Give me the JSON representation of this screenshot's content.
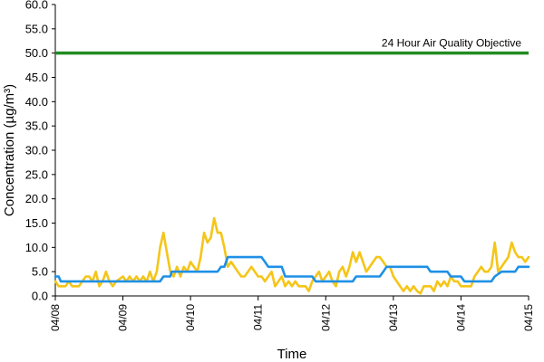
{
  "chart_data": {
    "type": "line",
    "title": "",
    "xlabel": "Time",
    "ylabel": "Concentration (µg/m³)",
    "ylim": [
      0,
      60
    ],
    "y_ticks": [
      "0.0",
      "5.0",
      "10.0",
      "15.0",
      "20.0",
      "25.0",
      "30.0",
      "35.0",
      "40.0",
      "45.0",
      "50.0",
      "55.0",
      "60.0"
    ],
    "x_tick_labels": [
      "04/08",
      "04/09",
      "04/10",
      "04/11",
      "04/12",
      "04/13",
      "04/14",
      "04/15"
    ],
    "xlim_days": [
      0,
      7
    ],
    "grid": false,
    "legend": "none",
    "reference_line": {
      "label": "24 Hour Air Quality Objective",
      "value": 50,
      "color": "#228B22"
    },
    "series": [
      {
        "color": "#F5C518",
        "points": [
          [
            0.0,
            3
          ],
          [
            0.05,
            2
          ],
          [
            0.1,
            2
          ],
          [
            0.15,
            2
          ],
          [
            0.2,
            3
          ],
          [
            0.25,
            2
          ],
          [
            0.3,
            2
          ],
          [
            0.35,
            2
          ],
          [
            0.4,
            3
          ],
          [
            0.45,
            4
          ],
          [
            0.5,
            4
          ],
          [
            0.55,
            3
          ],
          [
            0.6,
            5
          ],
          [
            0.65,
            2
          ],
          [
            0.7,
            3
          ],
          [
            0.75,
            5
          ],
          [
            0.8,
            3
          ],
          [
            0.85,
            2
          ],
          [
            0.9,
            3
          ],
          [
            1.0,
            4
          ],
          [
            1.05,
            3
          ],
          [
            1.1,
            4
          ],
          [
            1.15,
            3
          ],
          [
            1.2,
            4
          ],
          [
            1.25,
            3
          ],
          [
            1.3,
            4
          ],
          [
            1.35,
            3
          ],
          [
            1.4,
            5
          ],
          [
            1.45,
            3
          ],
          [
            1.5,
            5
          ],
          [
            1.55,
            10
          ],
          [
            1.6,
            13
          ],
          [
            1.65,
            9
          ],
          [
            1.7,
            5
          ],
          [
            1.75,
            4
          ],
          [
            1.8,
            6
          ],
          [
            1.85,
            4
          ],
          [
            1.9,
            6
          ],
          [
            1.95,
            5
          ],
          [
            2.0,
            7
          ],
          [
            2.05,
            6
          ],
          [
            2.1,
            5
          ],
          [
            2.15,
            8
          ],
          [
            2.2,
            13
          ],
          [
            2.25,
            11
          ],
          [
            2.3,
            12
          ],
          [
            2.35,
            16
          ],
          [
            2.4,
            13
          ],
          [
            2.45,
            13
          ],
          [
            2.5,
            10
          ],
          [
            2.55,
            6
          ],
          [
            2.6,
            7
          ],
          [
            2.65,
            6
          ],
          [
            2.7,
            5
          ],
          [
            2.75,
            4
          ],
          [
            2.8,
            4
          ],
          [
            2.85,
            5
          ],
          [
            2.9,
            6
          ],
          [
            2.95,
            5
          ],
          [
            3.0,
            4
          ],
          [
            3.05,
            4
          ],
          [
            3.1,
            3
          ],
          [
            3.15,
            4
          ],
          [
            3.2,
            5
          ],
          [
            3.25,
            2
          ],
          [
            3.3,
            3
          ],
          [
            3.35,
            4
          ],
          [
            3.4,
            2
          ],
          [
            3.45,
            3
          ],
          [
            3.5,
            2
          ],
          [
            3.55,
            3
          ],
          [
            3.6,
            2
          ],
          [
            3.65,
            2
          ],
          [
            3.7,
            2
          ],
          [
            3.75,
            1
          ],
          [
            3.8,
            3
          ],
          [
            3.85,
            4
          ],
          [
            3.9,
            5
          ],
          [
            3.95,
            3
          ],
          [
            4.0,
            4
          ],
          [
            4.05,
            5
          ],
          [
            4.1,
            3
          ],
          [
            4.15,
            2
          ],
          [
            4.2,
            5
          ],
          [
            4.25,
            6
          ],
          [
            4.3,
            4
          ],
          [
            4.35,
            6
          ],
          [
            4.4,
            9
          ],
          [
            4.45,
            7
          ],
          [
            4.5,
            9
          ],
          [
            4.55,
            7
          ],
          [
            4.6,
            5
          ],
          [
            4.65,
            6
          ],
          [
            4.7,
            7
          ],
          [
            4.75,
            8
          ],
          [
            4.8,
            8
          ],
          [
            4.85,
            7
          ],
          [
            4.9,
            6
          ],
          [
            4.95,
            6
          ],
          [
            5.0,
            4
          ],
          [
            5.05,
            3
          ],
          [
            5.1,
            2
          ],
          [
            5.15,
            1
          ],
          [
            5.2,
            2
          ],
          [
            5.25,
            1
          ],
          [
            5.3,
            2
          ],
          [
            5.35,
            1
          ],
          [
            5.4,
            0.5
          ],
          [
            5.45,
            2
          ],
          [
            5.5,
            2
          ],
          [
            5.55,
            2
          ],
          [
            5.6,
            1
          ],
          [
            5.65,
            3
          ],
          [
            5.7,
            2
          ],
          [
            5.75,
            3
          ],
          [
            5.8,
            2
          ],
          [
            5.85,
            4
          ],
          [
            5.9,
            3
          ],
          [
            5.95,
            3
          ],
          [
            6.0,
            2
          ],
          [
            6.05,
            2
          ],
          [
            6.1,
            2
          ],
          [
            6.15,
            2
          ],
          [
            6.2,
            4
          ],
          [
            6.25,
            5
          ],
          [
            6.3,
            6
          ],
          [
            6.35,
            5
          ],
          [
            6.4,
            5
          ],
          [
            6.45,
            6
          ],
          [
            6.5,
            11
          ],
          [
            6.55,
            5
          ],
          [
            6.6,
            6
          ],
          [
            6.65,
            7
          ],
          [
            6.7,
            8
          ],
          [
            6.75,
            11
          ],
          [
            6.8,
            9
          ],
          [
            6.85,
            8
          ],
          [
            6.9,
            8
          ],
          [
            6.95,
            7
          ],
          [
            7.0,
            8
          ]
        ]
      },
      {
        "color": "#1E90E6",
        "points": [
          [
            0.0,
            4
          ],
          [
            0.05,
            4
          ],
          [
            0.08,
            3
          ],
          [
            0.88,
            3
          ],
          [
            0.92,
            3
          ],
          [
            1.0,
            3
          ],
          [
            1.55,
            3
          ],
          [
            1.6,
            4
          ],
          [
            1.7,
            4
          ],
          [
            1.72,
            5
          ],
          [
            2.4,
            5
          ],
          [
            2.45,
            6
          ],
          [
            2.5,
            6
          ],
          [
            2.55,
            8
          ],
          [
            3.05,
            8
          ],
          [
            3.1,
            7
          ],
          [
            3.15,
            6
          ],
          [
            3.35,
            6
          ],
          [
            3.4,
            4
          ],
          [
            3.8,
            4
          ],
          [
            3.85,
            3
          ],
          [
            4.1,
            3
          ],
          [
            4.4,
            3
          ],
          [
            4.45,
            4
          ],
          [
            4.8,
            4
          ],
          [
            4.85,
            5
          ],
          [
            4.9,
            6
          ],
          [
            5.5,
            6
          ],
          [
            5.55,
            5
          ],
          [
            5.8,
            5
          ],
          [
            5.85,
            4
          ],
          [
            6.0,
            4
          ],
          [
            6.05,
            3
          ],
          [
            6.45,
            3
          ],
          [
            6.5,
            4
          ],
          [
            6.6,
            5
          ],
          [
            6.8,
            5
          ],
          [
            6.85,
            6
          ],
          [
            7.0,
            6
          ]
        ]
      }
    ]
  }
}
